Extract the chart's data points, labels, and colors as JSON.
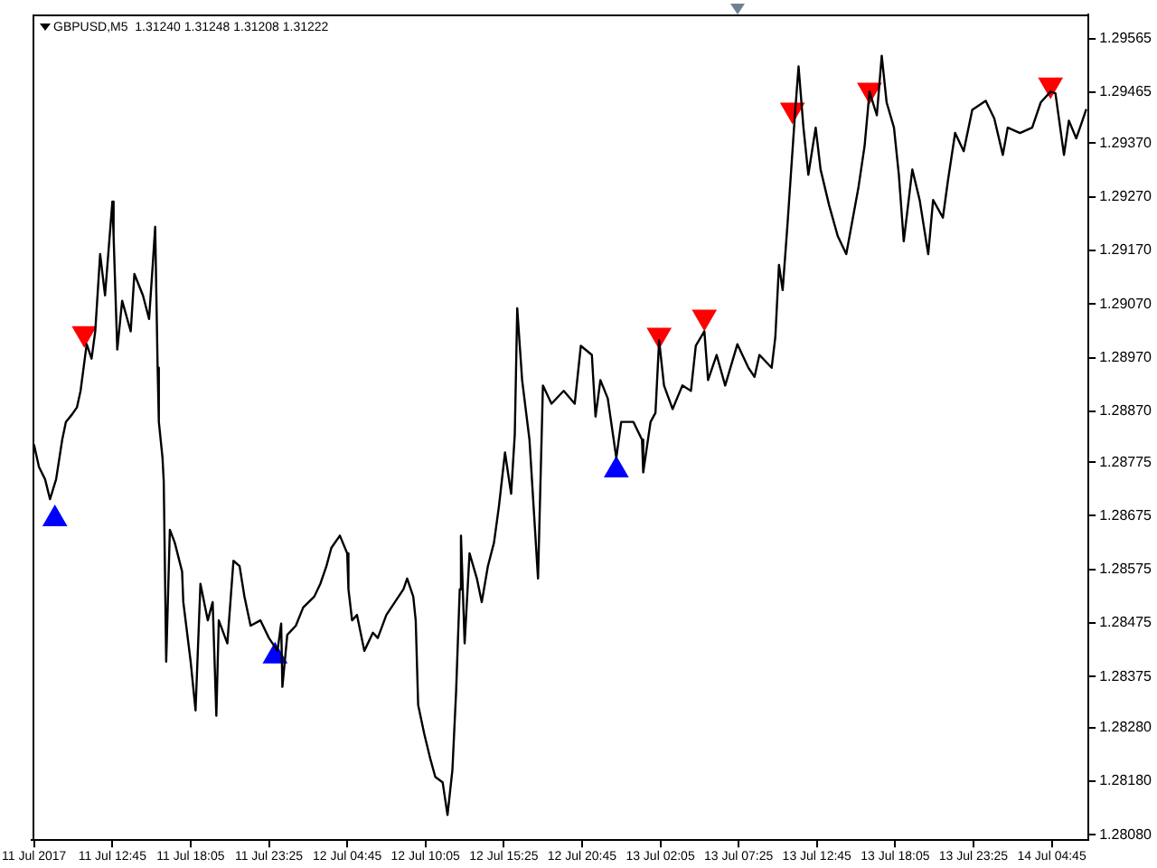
{
  "chart_data": {
    "type": "line",
    "title": "GBPUSD,M5  1.31240 1.31248 1.31208 1.31222",
    "xlim": [
      "2017-07-11T07:15",
      "2017-07-14T07:15"
    ],
    "xticks": [
      {
        "value": "2017-07-11T07:25",
        "label": "11 Jul 2017"
      },
      {
        "value": "2017-07-11T12:45",
        "label": "11 Jul 12:45"
      },
      {
        "value": "2017-07-11T18:05",
        "label": "11 Jul 18:05"
      },
      {
        "value": "2017-07-11T23:25",
        "label": "11 Jul 23:25"
      },
      {
        "value": "2017-07-12T04:45",
        "label": "12 Jul 04:45"
      },
      {
        "value": "2017-07-12T10:05",
        "label": "12 Jul 10:05"
      },
      {
        "value": "2017-07-12T15:25",
        "label": "12 Jul 15:25"
      },
      {
        "value": "2017-07-12T20:45",
        "label": "12 Jul 20:45"
      },
      {
        "value": "2017-07-13T02:05",
        "label": "13 Jul 02:05"
      },
      {
        "value": "2017-07-13T07:25",
        "label": "13 Jul 07:25"
      },
      {
        "value": "2017-07-13T12:45",
        "label": "13 Jul 12:45"
      },
      {
        "value": "2017-07-13T18:05",
        "label": "13 Jul 18:05"
      },
      {
        "value": "2017-07-13T23:25",
        "label": "13 Jul 23:25"
      },
      {
        "value": "2017-07-14T04:45",
        "label": "14 Jul 04:45"
      }
    ],
    "ylim": [
      1.2807,
      1.2961
    ],
    "yticks": [
      1.29565,
      1.29465,
      {
        "value": 1.2937,
        "label": "1.29370"
      },
      {
        "value": 1.2927,
        "label": "1.29270"
      },
      {
        "value": 1.2917,
        "label": "1.29170"
      },
      {
        "value": 1.2907,
        "label": "1.29070"
      },
      {
        "value": 1.2897,
        "label": "1.28970"
      },
      {
        "value": 1.2887,
        "label": "1.28870"
      },
      1.28775,
      1.28675,
      1.28575,
      1.28475,
      1.28375,
      {
        "value": 1.2828,
        "label": "1.28280"
      },
      {
        "value": 1.2818,
        "label": "1.28180"
      },
      {
        "value": 1.2808,
        "label": "1.28080"
      }
    ],
    "series": [
      {
        "color": "#000000",
        "x": [
          "2017-07-11T07:25",
          "2017-07-11T07:45",
          "2017-07-11T08:10",
          "2017-07-11T08:30",
          "2017-07-11T08:55",
          "2017-07-11T09:20",
          "2017-07-11T09:35",
          "2017-07-11T10:00",
          "2017-07-11T10:20",
          "2017-07-11T10:35",
          "2017-07-11T11:00",
          "2017-07-11T11:20",
          "2017-07-11T11:35",
          "2017-07-11T11:55",
          "2017-07-11T12:15",
          "2017-07-11T12:45",
          "2017-07-11T12:50",
          "2017-07-11T13:05",
          "2017-07-11T13:25",
          "2017-07-11T14:00",
          "2017-07-11T14:15",
          "2017-07-11T14:50",
          "2017-07-11T15:15",
          "2017-07-11T15:30",
          "2017-07-11T15:40",
          "2017-07-11T15:50",
          "2017-07-11T15:55",
          "2017-07-11T16:10",
          "2017-07-11T16:15",
          "2017-07-11T16:25",
          "2017-07-11T16:40",
          "2017-07-11T17:00",
          "2017-07-11T17:30",
          "2017-07-11T17:35",
          "2017-07-11T18:05",
          "2017-07-11T18:25",
          "2017-07-11T18:45",
          "2017-07-11T19:15",
          "2017-07-11T19:35",
          "2017-07-11T19:50",
          "2017-07-11T20:00",
          "2017-07-11T20:35",
          "2017-07-11T21:00",
          "2017-07-11T21:25",
          "2017-07-11T21:45",
          "2017-07-11T22:10",
          "2017-07-11T22:50",
          "2017-07-11T23:25",
          "2017-07-12T00:00",
          "2017-07-12T00:15",
          "2017-07-12T00:20",
          "2017-07-12T00:40",
          "2017-07-12T01:15",
          "2017-07-12T01:45",
          "2017-07-12T02:30",
          "2017-07-12T02:55",
          "2017-07-12T03:20",
          "2017-07-12T03:40",
          "2017-07-12T04:15",
          "2017-07-12T04:45",
          "2017-07-12T04:50",
          "2017-07-12T05:05",
          "2017-07-12T05:25",
          "2017-07-12T05:55",
          "2017-07-12T06:30",
          "2017-07-12T06:50",
          "2017-07-12T07:25",
          "2017-07-12T08:00",
          "2017-07-12T08:35",
          "2017-07-12T08:50",
          "2017-07-12T09:15",
          "2017-07-12T09:25",
          "2017-07-12T09:35",
          "2017-07-12T10:00",
          "2017-07-12T10:25",
          "2017-07-12T10:45",
          "2017-07-12T11:15",
          "2017-07-12T11:35",
          "2017-07-12T11:55",
          "2017-07-12T12:10",
          "2017-07-12T12:25",
          "2017-07-12T12:30",
          "2017-07-12T12:45",
          "2017-07-12T13:05",
          "2017-07-12T13:35",
          "2017-07-12T13:55",
          "2017-07-12T14:20",
          "2017-07-12T14:45",
          "2017-07-12T15:05",
          "2017-07-12T15:30",
          "2017-07-12T15:55",
          "2017-07-12T16:10",
          "2017-07-12T16:20",
          "2017-07-12T16:40",
          "2017-07-12T17:10",
          "2017-07-12T17:45",
          "2017-07-12T18:05",
          "2017-07-12T18:40",
          "2017-07-12T19:30",
          "2017-07-12T20:15",
          "2017-07-12T20:40",
          "2017-07-12T21:25",
          "2017-07-12T21:40",
          "2017-07-12T22:00",
          "2017-07-12T22:30",
          "2017-07-12T23:05",
          "2017-07-12T23:25",
          "2017-07-13T00:15",
          "2017-07-13T00:50",
          "2017-07-13T00:55",
          "2017-07-13T01:25",
          "2017-07-13T01:45",
          "2017-07-13T02:00",
          "2017-07-13T02:20",
          "2017-07-13T02:55",
          "2017-07-13T03:35",
          "2017-07-13T04:10",
          "2017-07-13T04:30",
          "2017-07-13T05:05",
          "2017-07-13T05:20",
          "2017-07-13T05:55",
          "2017-07-13T06:30",
          "2017-07-13T07:20",
          "2017-07-13T08:05",
          "2017-07-13T08:30",
          "2017-07-13T08:50",
          "2017-07-13T09:40",
          "2017-07-13T09:55",
          "2017-07-13T10:10",
          "2017-07-13T10:25",
          "2017-07-13T10:45",
          "2017-07-13T11:15",
          "2017-07-13T11:30",
          "2017-07-13T11:50",
          "2017-07-13T12:10",
          "2017-07-13T12:40",
          "2017-07-13T13:00",
          "2017-07-13T13:35",
          "2017-07-13T14:10",
          "2017-07-13T14:45",
          "2017-07-13T15:35",
          "2017-07-13T16:00",
          "2017-07-13T16:20",
          "2017-07-13T16:50",
          "2017-07-13T17:10",
          "2017-07-13T17:30",
          "2017-07-13T18:00",
          "2017-07-13T18:20",
          "2017-07-13T18:40",
          "2017-07-13T19:15",
          "2017-07-13T19:45",
          "2017-07-13T20:20",
          "2017-07-13T20:40",
          "2017-07-13T21:20",
          "2017-07-13T21:40",
          "2017-07-13T22:10",
          "2017-07-13T22:45",
          "2017-07-13T23:20",
          "2017-07-14T00:15",
          "2017-07-14T00:50",
          "2017-07-14T01:25",
          "2017-07-14T01:45",
          "2017-07-14T02:35",
          "2017-07-14T03:25",
          "2017-07-14T04:00",
          "2017-07-14T04:40",
          "2017-07-14T05:00",
          "2017-07-14T05:35",
          "2017-07-14T05:55",
          "2017-07-14T06:25",
          "2017-07-14T06:45",
          "2017-07-14T07:05"
        ],
        "values": [
          1.28807,
          1.28766,
          1.28743,
          1.28706,
          1.28743,
          1.28817,
          1.2885,
          1.28864,
          1.28877,
          1.28908,
          1.28995,
          1.28968,
          1.29019,
          1.29163,
          1.29086,
          1.29261,
          1.29197,
          1.28985,
          1.29076,
          1.29019,
          1.29126,
          1.29086,
          1.29042,
          1.29143,
          1.29214,
          1.28951,
          1.2885,
          1.28783,
          1.28739,
          1.28403,
          1.28649,
          1.28625,
          1.28571,
          1.28514,
          1.28403,
          1.28312,
          1.28548,
          1.2848,
          1.28514,
          1.28302,
          1.2848,
          1.28437,
          1.28591,
          1.28581,
          1.28524,
          1.2847,
          1.2848,
          1.28447,
          1.28423,
          1.28474,
          1.28356,
          1.28453,
          1.2847,
          1.28504,
          1.28524,
          1.28548,
          1.28581,
          1.28615,
          1.28638,
          1.28605,
          1.28538,
          1.2848,
          1.2849,
          1.28423,
          1.28457,
          1.28447,
          1.2849,
          1.28514,
          1.28538,
          1.28558,
          1.28524,
          1.2848,
          1.28322,
          1.28268,
          1.28221,
          1.28188,
          1.28178,
          1.28117,
          1.28201,
          1.28346,
          1.28538,
          1.28638,
          1.28437,
          1.28605,
          1.28558,
          1.28514,
          1.28581,
          1.28625,
          1.28692,
          1.28793,
          1.28716,
          1.28827,
          1.29062,
          1.28928,
          1.28817,
          1.28558,
          1.28918,
          1.28884,
          1.28908,
          1.28884,
          1.28992,
          1.28975,
          1.2886,
          1.28928,
          1.28894,
          1.28783,
          1.2885,
          1.2885,
          1.28817,
          1.28756,
          1.2885,
          1.28867,
          1.29002,
          1.28918,
          1.28874,
          1.28918,
          1.28908,
          1.28992,
          1.29019,
          1.28928,
          1.28975,
          1.28918,
          1.28995,
          1.28951,
          1.28934,
          1.28975,
          1.28951,
          1.29008,
          1.29143,
          1.29096,
          1.2922,
          1.29422,
          1.29513,
          1.29399,
          1.29311,
          1.29399,
          1.29321,
          1.29254,
          1.29197,
          1.29163,
          1.29288,
          1.29365,
          1.29466,
          1.29422,
          1.29533,
          1.29446,
          1.29399,
          1.29311,
          1.29187,
          1.29321,
          1.29264,
          1.29163,
          1.29264,
          1.29231,
          1.29298,
          1.29389,
          1.29355,
          1.29432,
          1.29449,
          1.29416,
          1.29348,
          1.29399,
          1.29389,
          1.29399,
          1.29446,
          1.29466,
          1.29463,
          1.29348,
          1.29412,
          1.29379,
          1.29405,
          1.29432
        ]
      },
      {
        "type": "scatter",
        "color": "#ff0000",
        "marker": "triangle",
        "x": [
          "2017-07-11T10:50",
          "2017-07-13T02:00",
          "2017-07-13T05:05",
          "2017-07-13T11:05",
          "2017-07-13T16:20",
          "2017-07-14T04:40"
        ],
        "values": [
          1.29015,
          1.29012,
          1.29046,
          1.29432,
          1.29469,
          1.29479
        ]
      },
      {
        "type": "scatter",
        "color": "#0000ff",
        "marker": "triangle",
        "x": [
          "2017-07-11T08:50",
          "2017-07-11T23:50",
          "2017-07-12T23:05"
        ],
        "values": [
          1.28669,
          1.28413,
          1.2876
        ]
      }
    ]
  }
}
